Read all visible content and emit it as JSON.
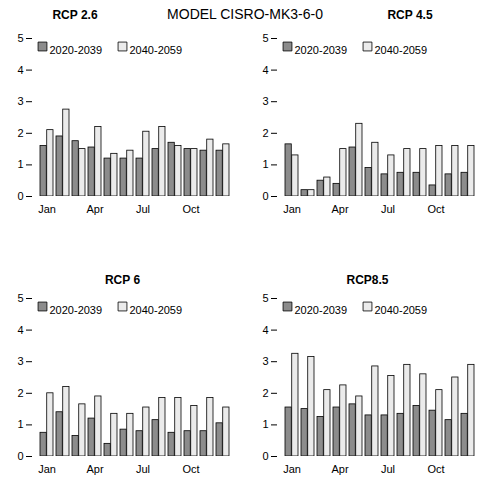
{
  "title": "MODEL CISRO-MK3-6-0",
  "chart_data": [
    {
      "type": "bar",
      "title": "RCP 2.6",
      "categories": [
        "Jan",
        null,
        null,
        "Apr",
        null,
        null,
        "Jul",
        null,
        null,
        "Oct",
        null,
        null
      ],
      "series": [
        {
          "name": "2020-2039",
          "color": "#8c8c8c",
          "values": [
            1.6,
            1.9,
            1.75,
            1.55,
            1.2,
            1.2,
            1.2,
            1.5,
            1.7,
            1.5,
            1.45,
            1.45
          ]
        },
        {
          "name": "2040-2059",
          "color": "#ebebeb",
          "values": [
            2.1,
            2.75,
            1.5,
            2.2,
            1.35,
            1.45,
            2.05,
            2.2,
            1.6,
            1.5,
            1.8,
            1.65
          ]
        }
      ],
      "ylim": [
        0,
        5
      ],
      "yticks": [
        0,
        1,
        2,
        3,
        4,
        5
      ],
      "legend": "top-left"
    },
    {
      "type": "bar",
      "title": "RCP 4.5",
      "categories": [
        "Jan",
        null,
        null,
        "Apr",
        null,
        null,
        "Jul",
        null,
        null,
        "Oct",
        null,
        null
      ],
      "series": [
        {
          "name": "2020-2039",
          "color": "#8c8c8c",
          "values": [
            1.65,
            0.2,
            0.5,
            0.4,
            1.55,
            0.9,
            0.7,
            0.75,
            0.75,
            0.35,
            0.7,
            0.75
          ]
        },
        {
          "name": "2040-2059",
          "color": "#ebebeb",
          "values": [
            1.3,
            0.2,
            0.6,
            1.5,
            2.3,
            1.7,
            1.3,
            1.5,
            1.5,
            1.6,
            1.6,
            1.6
          ]
        }
      ],
      "ylim": [
        0,
        5
      ],
      "yticks": [
        0,
        1,
        2,
        3,
        4,
        5
      ],
      "legend": "top-left"
    },
    {
      "type": "bar",
      "title": "RCP 6",
      "categories": [
        "Jan",
        null,
        null,
        "Apr",
        null,
        null,
        "Jul",
        null,
        null,
        "Oct",
        null,
        null
      ],
      "series": [
        {
          "name": "2020-2039",
          "color": "#8c8c8c",
          "values": [
            0.75,
            1.4,
            0.65,
            1.2,
            0.4,
            0.85,
            0.8,
            1.15,
            0.75,
            0.8,
            0.8,
            1.05
          ]
        },
        {
          "name": "2040-2059",
          "color": "#ebebeb",
          "values": [
            2.0,
            2.2,
            1.65,
            1.9,
            1.35,
            1.35,
            1.55,
            1.85,
            1.85,
            1.6,
            1.85,
            1.55
          ]
        }
      ],
      "ylim": [
        0,
        5
      ],
      "yticks": [
        0,
        1,
        2,
        3,
        4,
        5
      ],
      "legend": "top-left"
    },
    {
      "type": "bar",
      "title": "RCP8.5",
      "categories": [
        "Jan",
        null,
        null,
        "Apr",
        null,
        null,
        "Jul",
        null,
        null,
        "Oct",
        null,
        null
      ],
      "series": [
        {
          "name": "2020-2039",
          "color": "#8c8c8c",
          "values": [
            1.55,
            1.5,
            1.25,
            1.55,
            1.65,
            1.3,
            1.3,
            1.35,
            1.6,
            1.45,
            1.15,
            1.35
          ]
        },
        {
          "name": "2040-2059",
          "color": "#ebebeb",
          "values": [
            3.25,
            3.15,
            2.1,
            2.25,
            1.9,
            2.85,
            2.55,
            2.9,
            2.6,
            2.1,
            2.5,
            2.9
          ]
        }
      ],
      "ylim": [
        0,
        5
      ],
      "yticks": [
        0,
        1,
        2,
        3,
        4,
        5
      ],
      "legend": "top-left"
    }
  ]
}
